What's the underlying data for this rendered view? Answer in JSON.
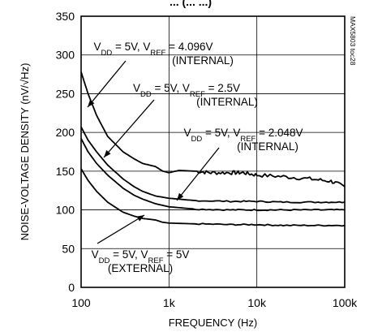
{
  "chart_data": {
    "type": "line",
    "title_fragment": "... (... ...)",
    "xlabel": "FREQUENCY (Hz)",
    "ylabel": "NOISE-VOLTAGE DENSITY (nV/√Hz)",
    "x_scale": "log",
    "xlim": [
      100,
      100000
    ],
    "ylim": [
      0,
      350
    ],
    "x_ticks": [
      {
        "value": 100,
        "label": "100"
      },
      {
        "value": 1000,
        "label": "1k"
      },
      {
        "value": 10000,
        "label": "10k"
      },
      {
        "value": 100000,
        "label": "100k"
      }
    ],
    "y_ticks": [
      0,
      50,
      100,
      150,
      200,
      250,
      300,
      350
    ],
    "grid": true,
    "side_code": "MAX5803 toc28",
    "series": [
      {
        "annotation": [
          "V",
          "DD",
          " = 5V, V",
          "REF",
          " = 4.096V"
        ],
        "annotation_line2": "(INTERNAL)",
        "noisy_tail": true,
        "points": [
          [
            100,
            278
          ],
          [
            120,
            250
          ],
          [
            150,
            222
          ],
          [
            200,
            195
          ],
          [
            300,
            175
          ],
          [
            400,
            166
          ],
          [
            500,
            160
          ],
          [
            700,
            156
          ],
          [
            850,
            150
          ],
          [
            1000,
            148
          ],
          [
            1300,
            151
          ],
          [
            2000,
            150
          ],
          [
            3000,
            148
          ],
          [
            5000,
            148
          ],
          [
            7000,
            148
          ],
          [
            10000,
            145
          ],
          [
            20000,
            143
          ],
          [
            40000,
            140
          ],
          [
            70000,
            137
          ],
          [
            100000,
            130
          ]
        ]
      },
      {
        "annotation": [
          "V",
          "DD",
          " = 5V, V",
          "REF",
          " = 2.5V"
        ],
        "annotation_line2": "(INTERNAL)",
        "noisy_tail": false,
        "points": [
          [
            100,
            207
          ],
          [
            120,
            190
          ],
          [
            150,
            175
          ],
          [
            200,
            158
          ],
          [
            300,
            140
          ],
          [
            400,
            130
          ],
          [
            500,
            124
          ],
          [
            700,
            118
          ],
          [
            1000,
            115
          ],
          [
            2000,
            112
          ],
          [
            5000,
            111
          ],
          [
            10000,
            111
          ],
          [
            20000,
            110
          ],
          [
            50000,
            110
          ],
          [
            100000,
            110
          ]
        ]
      },
      {
        "annotation": [
          "V",
          "DD",
          " = 5V, V",
          "REF",
          " = 2.048V"
        ],
        "annotation_line2": "(INTERNAL)",
        "noisy_tail": false,
        "points": [
          [
            100,
            192
          ],
          [
            120,
            175
          ],
          [
            150,
            160
          ],
          [
            200,
            145
          ],
          [
            300,
            128
          ],
          [
            400,
            119
          ],
          [
            500,
            114
          ],
          [
            700,
            108
          ],
          [
            1000,
            104
          ],
          [
            2000,
            101
          ],
          [
            5000,
            100
          ],
          [
            10000,
            100
          ],
          [
            20000,
            100
          ],
          [
            50000,
            100
          ],
          [
            100000,
            100
          ]
        ]
      },
      {
        "annotation": [
          "V",
          "DD",
          " = 5V, V",
          "REF",
          " = 5V"
        ],
        "annotation_line2": "(EXTERNAL)",
        "noisy_tail": false,
        "points": [
          [
            100,
            153
          ],
          [
            120,
            138
          ],
          [
            150,
            124
          ],
          [
            200,
            110
          ],
          [
            300,
            97
          ],
          [
            400,
            92
          ],
          [
            500,
            89
          ],
          [
            700,
            87
          ],
          [
            850,
            84
          ],
          [
            1000,
            83
          ],
          [
            2000,
            82
          ],
          [
            5000,
            81
          ],
          [
            10000,
            81
          ],
          [
            20000,
            80
          ],
          [
            50000,
            80
          ],
          [
            100000,
            80
          ]
        ]
      }
    ]
  }
}
